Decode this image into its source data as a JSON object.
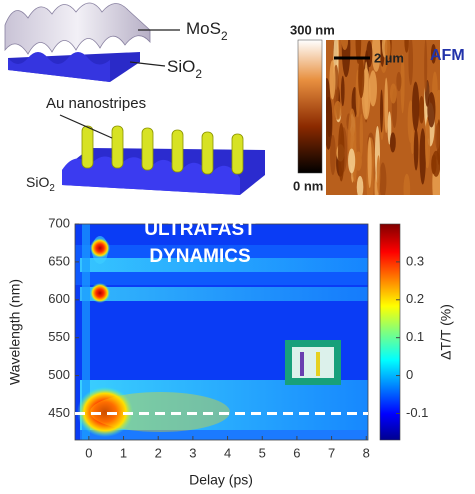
{
  "panels": {
    "schematic": {
      "mos2": {
        "text": "MoS",
        "sub": "2"
      },
      "sio2_top": {
        "text": "SiO",
        "sub": "2"
      },
      "au_label": "Au nanostripes",
      "sio2_bottom": {
        "text": "SiO",
        "sub": "2"
      }
    },
    "afm": {
      "title": "AFM",
      "colorbar_max": "300 nm",
      "colorbar_min": "0 nm",
      "scale_bar": "2 µm"
    },
    "dynamics": {
      "title": [
        "ULTRAFAST",
        "DYNAMICS"
      ],
      "xlabel": "Delay (ps)",
      "ylabel": "Wavelength (nm)",
      "xlim": [
        -0.4,
        8.05
      ],
      "xticks": [
        0,
        1,
        2,
        3,
        4,
        5,
        6,
        7,
        8
      ],
      "ylim": [
        415,
        700
      ],
      "yticks": [
        450,
        500,
        550,
        600,
        650,
        700
      ],
      "probe_wavelength": 450,
      "colorbar": {
        "label": "ΔT/T (%)",
        "lim": [
          -0.17,
          0.4
        ],
        "ticks": [
          -0.1,
          0,
          0.1,
          0.2,
          0.3
        ]
      }
    }
  }
}
